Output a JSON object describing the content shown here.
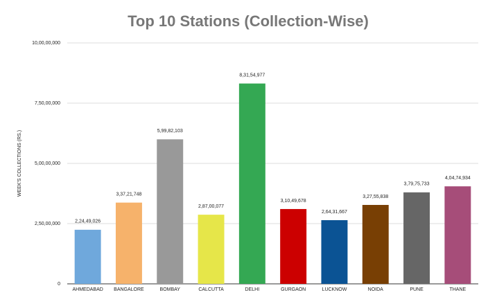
{
  "chart_data": {
    "type": "bar",
    "title": "Top 10 Stations (Collection-Wise)",
    "y_label": "WEEK'S COLLECTIONS (RS.)",
    "categories": [
      "AHMEDABAD",
      "BANGALORE",
      "BOMBAY",
      "CALCUTTA",
      "DELHI",
      "GURGAON",
      "LUCKNOW",
      "NOIDA",
      "PUNE",
      "THANE"
    ],
    "values": [
      22449026,
      33721748,
      59982103,
      28700077,
      83154977,
      31049678,
      26431667,
      32755838,
      37975733,
      40474934
    ],
    "value_labels": [
      "2,24,49,026",
      "3,37,21,748",
      "5,99,82,103",
      "2,87,00,077",
      "8,31,54,977",
      "3,10,49,678",
      "2,64,31,667",
      "3,27,55,838",
      "3,79,75,733",
      "4,04,74,934"
    ],
    "colors": [
      "#6fa8dc",
      "#f6b26b",
      "#999999",
      "#e6e649",
      "#34a853",
      "#cc0000",
      "#0b5394",
      "#783f04",
      "#666666",
      "#a64d79"
    ],
    "ylim": [
      0,
      100000000
    ],
    "yticks": [
      0,
      {
        "value": 25000000,
        "label": "2,50,00,000"
      },
      {
        "value": 50000000,
        "label": "5,00,00,000"
      },
      {
        "value": 75000000,
        "label": "7,50,00,000"
      },
      {
        "value": 100000000,
        "label": "10,00,00,000"
      }
    ],
    "grid": true
  }
}
